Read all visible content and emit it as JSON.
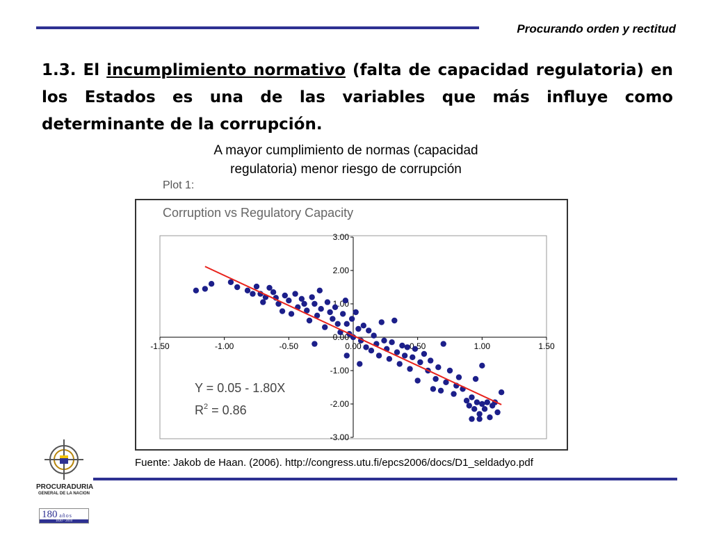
{
  "header": {
    "tagline": "Procurando orden y rectitud"
  },
  "heading": {
    "prefix": "1.3. El ",
    "underlined": "incumplimiento normativo",
    "suffix": " (falta de capacidad regulatoria) en los Estados es una de las variables que más influye como determinante de la corrupción."
  },
  "caption": {
    "line1": "A mayor cumplimiento de normas (capacidad",
    "line2": "regulatoria) menor riesgo de corrupción"
  },
  "plot": {
    "label": "Plot 1:",
    "title": "Corruption vs Regulatory Capacity",
    "equation": "Y = 0.05 - 1.80X",
    "r2_prefix": "R",
    "r2_sup": "2",
    "r2_suffix": " = 0.86"
  },
  "chart_data": {
    "type": "scatter",
    "title": "Corruption vs Regulatory Capacity",
    "xlabel": "",
    "ylabel": "",
    "xlim": [
      -1.5,
      1.5
    ],
    "ylim": [
      -3.0,
      3.0
    ],
    "x_ticks": [
      "-1.50",
      "-1.00",
      "-0.50",
      "0.00",
      "0.50",
      "1.00",
      "1.50"
    ],
    "y_ticks": [
      "3.00",
      "2.00",
      "1.00",
      "0.00",
      "-1.00",
      "-2.00",
      "-3.00"
    ],
    "grid": false,
    "point_color": "#1c1f8a",
    "line_color": "#e8221b",
    "regression": {
      "intercept": 0.05,
      "slope": -1.8,
      "r2": 0.86,
      "x_range": [
        -1.15,
        1.15
      ]
    },
    "points": [
      [
        -1.22,
        1.4
      ],
      [
        -1.15,
        1.45
      ],
      [
        -1.1,
        1.6
      ],
      [
        -0.95,
        1.65
      ],
      [
        -0.9,
        1.5
      ],
      [
        -0.82,
        1.4
      ],
      [
        -0.78,
        1.3
      ],
      [
        -0.75,
        1.52
      ],
      [
        -0.72,
        1.3
      ],
      [
        -0.7,
        1.05
      ],
      [
        -0.68,
        1.2
      ],
      [
        -0.65,
        1.48
      ],
      [
        -0.62,
        1.35
      ],
      [
        -0.6,
        1.18
      ],
      [
        -0.58,
        1.0
      ],
      [
        -0.55,
        0.78
      ],
      [
        -0.53,
        1.25
      ],
      [
        -0.5,
        1.1
      ],
      [
        -0.48,
        0.7
      ],
      [
        -0.45,
        1.3
      ],
      [
        -0.43,
        0.9
      ],
      [
        -0.4,
        1.15
      ],
      [
        -0.38,
        1.0
      ],
      [
        -0.36,
        0.8
      ],
      [
        -0.34,
        0.5
      ],
      [
        -0.32,
        1.2
      ],
      [
        -0.3,
        1.0
      ],
      [
        -0.28,
        0.65
      ],
      [
        -0.26,
        1.4
      ],
      [
        -0.25,
        0.85
      ],
      [
        -0.22,
        0.3
      ],
      [
        -0.2,
        1.05
      ],
      [
        -0.18,
        0.75
      ],
      [
        -0.16,
        0.55
      ],
      [
        -0.14,
        0.9
      ],
      [
        -0.12,
        0.4
      ],
      [
        -0.1,
        0.15
      ],
      [
        -0.08,
        0.7
      ],
      [
        -0.06,
        1.1
      ],
      [
        -0.05,
        0.4
      ],
      [
        -0.03,
        0.1
      ],
      [
        -0.01,
        0.55
      ],
      [
        0.0,
        0.0
      ],
      [
        0.02,
        0.75
      ],
      [
        0.04,
        0.25
      ],
      [
        0.06,
        -0.1
      ],
      [
        0.08,
        0.35
      ],
      [
        0.1,
        -0.3
      ],
      [
        0.12,
        0.2
      ],
      [
        0.14,
        -0.4
      ],
      [
        0.16,
        0.05
      ],
      [
        0.18,
        -0.2
      ],
      [
        0.2,
        -0.55
      ],
      [
        0.22,
        0.45
      ],
      [
        0.24,
        -0.1
      ],
      [
        0.26,
        -0.35
      ],
      [
        0.28,
        -0.65
      ],
      [
        0.3,
        -0.15
      ],
      [
        0.32,
        0.5
      ],
      [
        0.34,
        -0.45
      ],
      [
        0.36,
        -0.8
      ],
      [
        0.38,
        -0.25
      ],
      [
        0.4,
        -0.55
      ],
      [
        0.42,
        -0.3
      ],
      [
        0.44,
        -0.95
      ],
      [
        0.46,
        -0.6
      ],
      [
        0.48,
        -0.35
      ],
      [
        0.5,
        -1.3
      ],
      [
        0.52,
        -0.75
      ],
      [
        0.55,
        -0.5
      ],
      [
        0.58,
        -1.0
      ],
      [
        0.6,
        -0.7
      ],
      [
        0.62,
        -1.55
      ],
      [
        0.64,
        -1.25
      ],
      [
        0.66,
        -0.9
      ],
      [
        0.68,
        -1.6
      ],
      [
        0.7,
        -0.2
      ],
      [
        0.72,
        -1.35
      ],
      [
        0.75,
        -1.0
      ],
      [
        0.78,
        -1.7
      ],
      [
        0.8,
        -1.45
      ],
      [
        0.82,
        -1.2
      ],
      [
        0.85,
        -1.55
      ],
      [
        0.88,
        -1.9
      ],
      [
        0.9,
        -2.05
      ],
      [
        0.92,
        -1.8
      ],
      [
        0.94,
        -2.15
      ],
      [
        0.96,
        -1.95
      ],
      [
        0.98,
        -2.3
      ],
      [
        1.0,
        -2.0
      ],
      [
        1.02,
        -2.15
      ],
      [
        1.04,
        -1.95
      ],
      [
        1.06,
        -2.4
      ],
      [
        1.08,
        -2.05
      ],
      [
        1.1,
        -1.95
      ],
      [
        1.12,
        -2.25
      ],
      [
        1.15,
        -1.65
      ],
      [
        1.0,
        -0.85
      ],
      [
        0.95,
        -1.25
      ],
      [
        0.92,
        -2.45
      ],
      [
        0.98,
        -2.45
      ],
      [
        -0.05,
        -0.55
      ],
      [
        -0.3,
        -0.2
      ],
      [
        0.05,
        -0.8
      ]
    ]
  },
  "source": "Fuente: Jakob de Haan. (2006). http://congress.utu.fi/epcs2006/docs/D1_seldadyo.pdf",
  "logo": {
    "line1": "PROCURADURIA",
    "line2": "GENERAL DE LA NACION",
    "years": "180",
    "years_suffix": "años",
    "dates": "1830 - 2010"
  }
}
